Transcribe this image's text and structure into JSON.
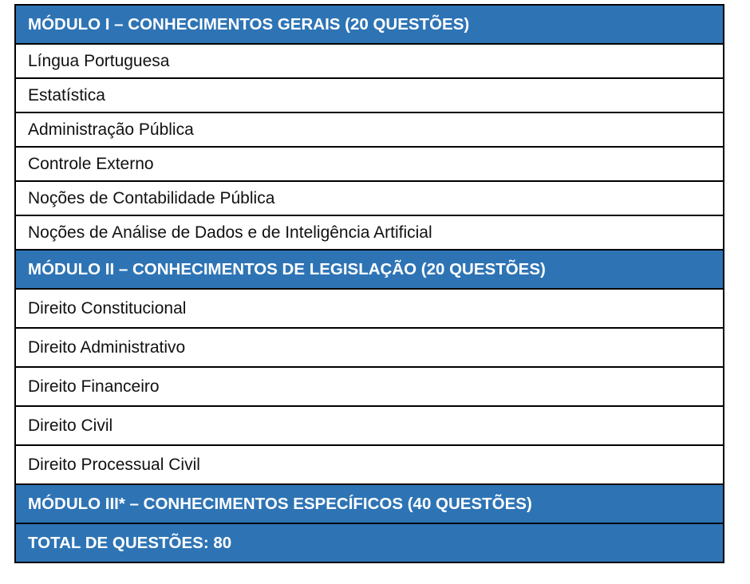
{
  "header_color": "#2E74B5",
  "modules": [
    {
      "title": "MÓDULO I – CONHECIMENTOS GERAIS (20 QUESTÕES)",
      "items": [
        "Língua Portuguesa",
        "Estatística",
        "Administração Pública",
        "Controle Externo",
        "Noções de Contabilidade Pública",
        "Noções de Análise de Dados e de Inteligência Artificial"
      ]
    },
    {
      "title": "MÓDULO II – CONHECIMENTOS DE LEGISLAÇÃO (20 QUESTÕES)",
      "items": [
        "Direito Constitucional",
        "Direito Administrativo",
        "Direito Financeiro",
        "Direito Civil",
        "Direito Processual Civil"
      ]
    },
    {
      "title": "MÓDULO III* – CONHECIMENTOS ESPECÍFICOS (40 QUESTÕES)",
      "items": []
    }
  ],
  "total": "TOTAL DE QUESTÕES: 80"
}
